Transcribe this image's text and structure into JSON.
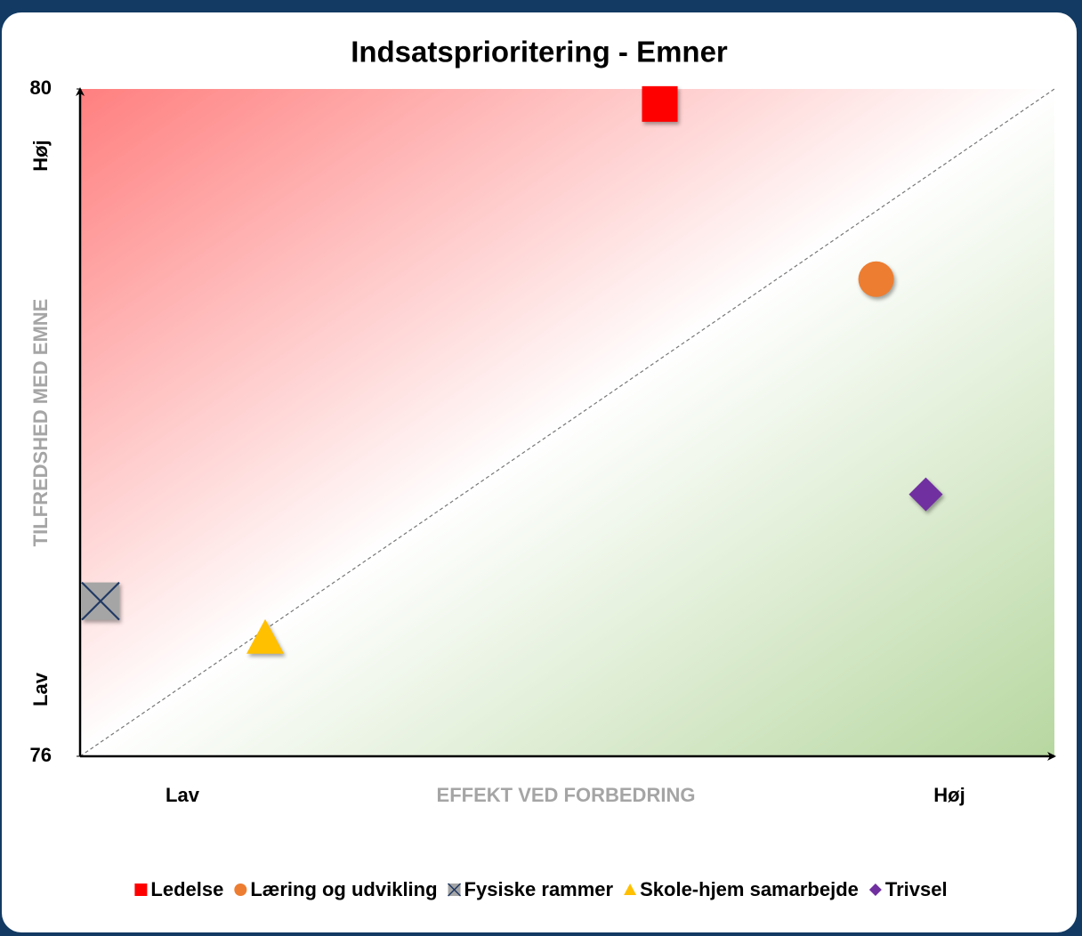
{
  "chart_data": {
    "type": "scatter",
    "title": "Indsatsprioritering - Emner",
    "xlabel": "EFFEKT VED FORBEDRING",
    "ylabel": "TILFREDSHED MED EMNE",
    "xlabel_ends": [
      "Lav",
      "Høj"
    ],
    "ylabel_ends": [
      "Lav",
      "Høj"
    ],
    "xlim": [
      0,
      1
    ],
    "ylim": [
      76,
      80
    ],
    "yticks": [
      76,
      80
    ],
    "diagonal": true,
    "legend": "bottom",
    "series": [
      {
        "name": "Ledelse",
        "color": "#ff0000",
        "marker": "square",
        "x": [
          0.595
        ],
        "values": [
          79.91
        ]
      },
      {
        "name": "Læring og udvikling",
        "color": "#ed7d31",
        "marker": "circle",
        "x": [
          0.817
        ],
        "values": [
          78.86
        ]
      },
      {
        "name": "Fysiske rammer",
        "color": "#a5a5a5",
        "marker": "cross-square",
        "x": [
          0.021
        ],
        "values": [
          76.93
        ]
      },
      {
        "name": "Skole-hjem samarbejde",
        "color": "#ffc000",
        "marker": "triangle",
        "x": [
          0.19
        ],
        "values": [
          76.71
        ]
      },
      {
        "name": "Trivsel",
        "color": "#7030a0",
        "marker": "diamond",
        "x": [
          0.868
        ],
        "values": [
          77.57
        ]
      }
    ]
  }
}
